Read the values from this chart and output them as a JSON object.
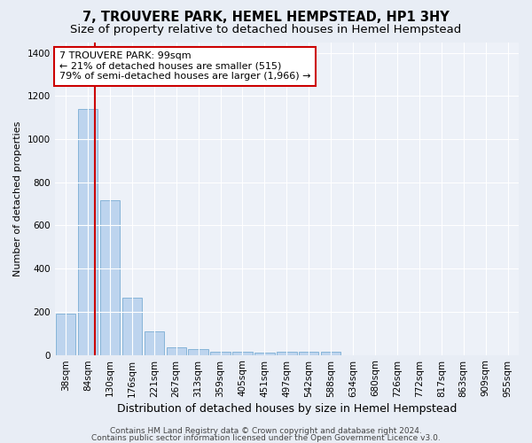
{
  "title": "7, TROUVERE PARK, HEMEL HEMPSTEAD, HP1 3HY",
  "subtitle": "Size of property relative to detached houses in Hemel Hempstead",
  "xlabel": "Distribution of detached houses by size in Hemel Hempstead",
  "ylabel": "Number of detached properties",
  "categories": [
    "38sqm",
    "84sqm",
    "130sqm",
    "176sqm",
    "221sqm",
    "267sqm",
    "313sqm",
    "359sqm",
    "405sqm",
    "451sqm",
    "497sqm",
    "542sqm",
    "588sqm",
    "634sqm",
    "680sqm",
    "726sqm",
    "772sqm",
    "817sqm",
    "863sqm",
    "909sqm",
    "955sqm"
  ],
  "values": [
    190,
    1140,
    715,
    265,
    108,
    35,
    28,
    15,
    13,
    12,
    15,
    15,
    13,
    0,
    0,
    0,
    0,
    0,
    0,
    0,
    0
  ],
  "bar_color": "#bdd4ee",
  "bar_edge_color": "#7aadd4",
  "subject_line_color": "#cc0000",
  "annotation_line1": "7 TROUVERE PARK: 99sqm",
  "annotation_line2": "← 21% of detached houses are smaller (515)",
  "annotation_line3": "79% of semi-detached houses are larger (1,966) →",
  "annotation_box_color": "#ffffff",
  "annotation_box_edge_color": "#cc0000",
  "ylim": [
    0,
    1450
  ],
  "yticks": [
    0,
    200,
    400,
    600,
    800,
    1000,
    1200,
    1400
  ],
  "footer1": "Contains HM Land Registry data © Crown copyright and database right 2024.",
  "footer2": "Contains public sector information licensed under the Open Government Licence v3.0.",
  "bg_color": "#e8edf5",
  "plot_bg_color": "#edf1f8",
  "grid_color": "#ffffff",
  "title_fontsize": 10.5,
  "subtitle_fontsize": 9.5,
  "xlabel_fontsize": 9,
  "ylabel_fontsize": 8,
  "tick_fontsize": 7.5,
  "annotation_fontsize": 8,
  "footer_fontsize": 6.5
}
